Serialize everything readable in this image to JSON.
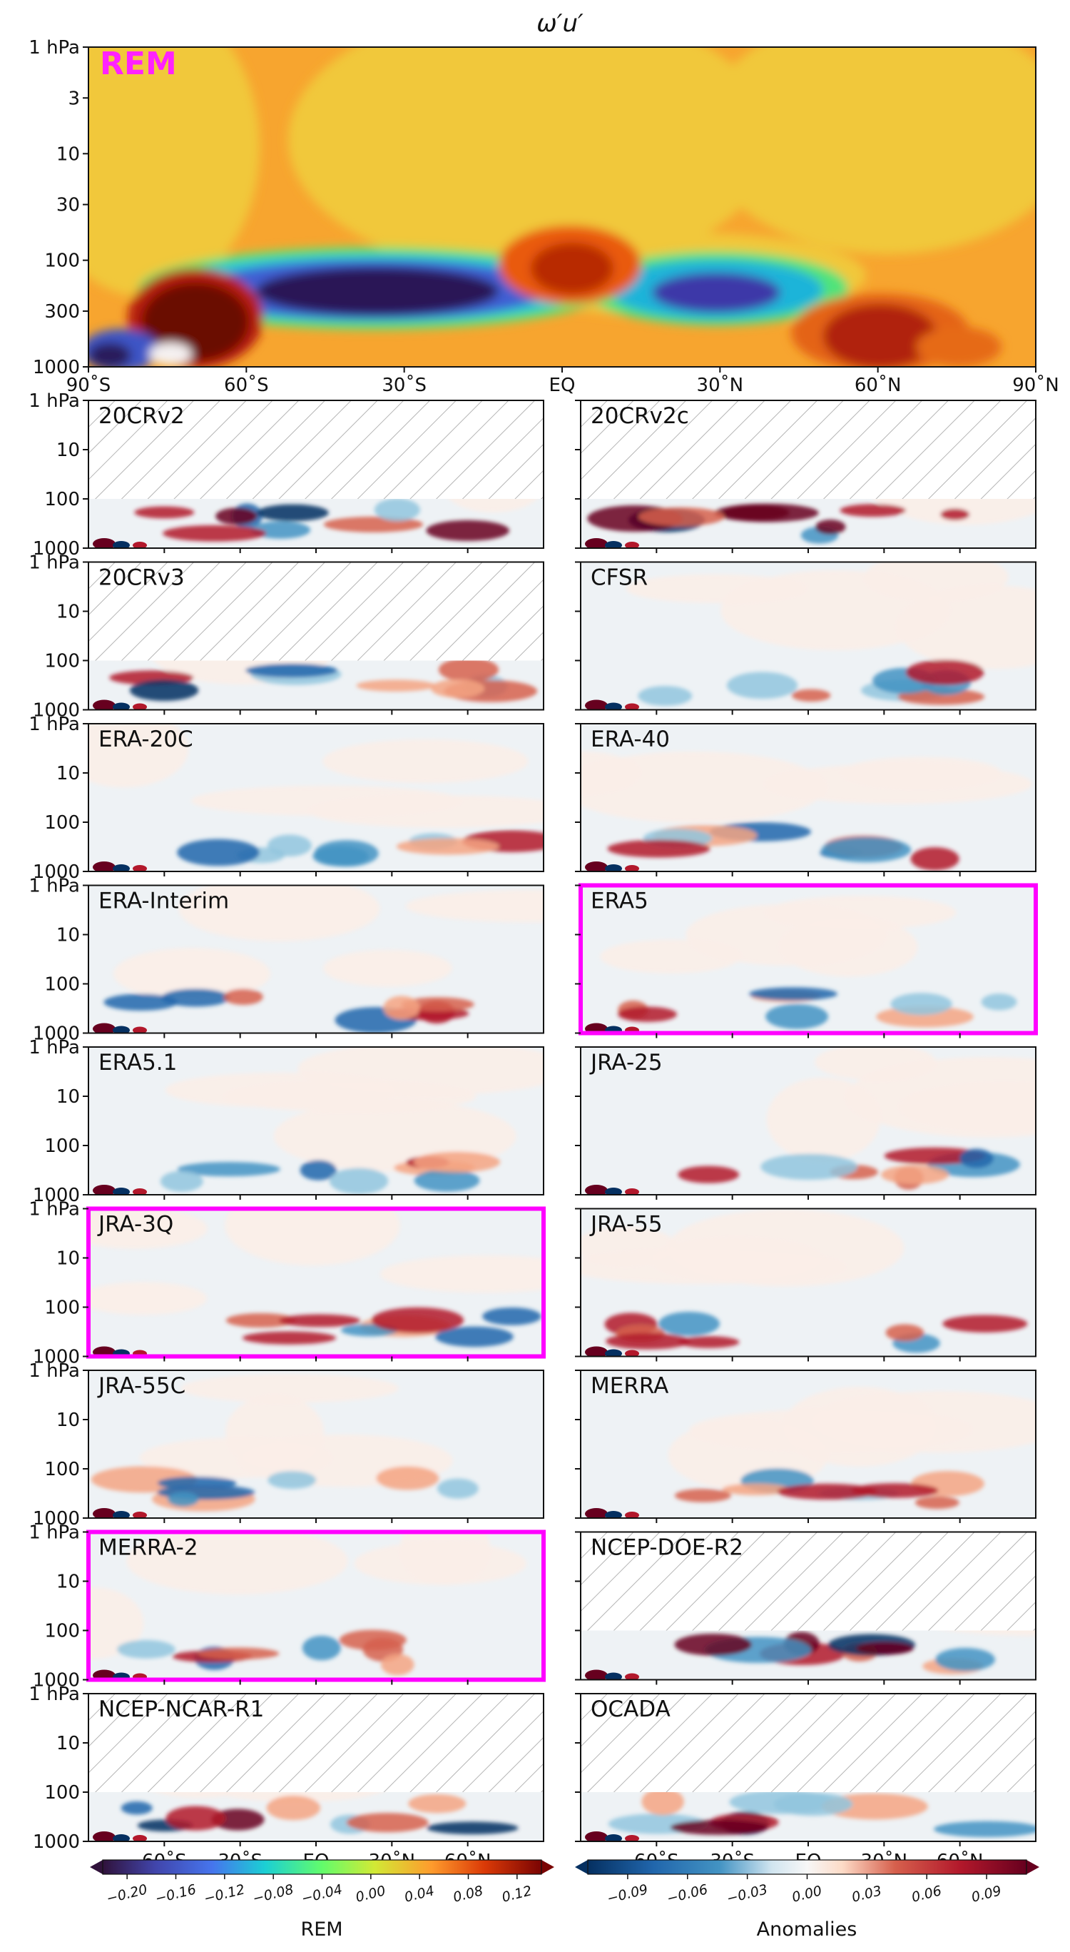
{
  "chart_data": {
    "type": "heatmap",
    "title": "ω′u′",
    "top_panel": {
      "label": "REM",
      "y_ticks": [
        "1 hPa",
        "3",
        "10",
        "30",
        "100",
        "300",
        "1000"
      ],
      "x_ticks": [
        "90˚S",
        "60˚S",
        "30˚S",
        "EQ",
        "30˚N",
        "60˚N",
        "90˚N"
      ]
    },
    "panel_y_ticks": [
      "1 hPa",
      "10",
      "100",
      "1000"
    ],
    "bottom_x_ticks": [
      "60˚S",
      "30˚S",
      "EQ",
      "30˚N",
      "60˚N"
    ],
    "panels": [
      {
        "name": "20CRv2",
        "masked_above_100hPa": true,
        "highlight": false
      },
      {
        "name": "20CRv2c",
        "masked_above_100hPa": true,
        "highlight": false
      },
      {
        "name": "20CRv3",
        "masked_above_100hPa": true,
        "highlight": false
      },
      {
        "name": "CFSR",
        "masked_above_100hPa": false,
        "highlight": false
      },
      {
        "name": "ERA-20C",
        "masked_above_100hPa": false,
        "highlight": false
      },
      {
        "name": "ERA-40",
        "masked_above_100hPa": false,
        "highlight": false
      },
      {
        "name": "ERA-Interim",
        "masked_above_100hPa": false,
        "highlight": false
      },
      {
        "name": "ERA5",
        "masked_above_100hPa": false,
        "highlight": true
      },
      {
        "name": "ERA5.1",
        "masked_above_100hPa": false,
        "highlight": false
      },
      {
        "name": "JRA-25",
        "masked_above_100hPa": false,
        "highlight": false
      },
      {
        "name": "JRA-3Q",
        "masked_above_100hPa": false,
        "highlight": true
      },
      {
        "name": "JRA-55",
        "masked_above_100hPa": false,
        "highlight": false
      },
      {
        "name": "JRA-55C",
        "masked_above_100hPa": false,
        "highlight": false
      },
      {
        "name": "MERRA",
        "masked_above_100hPa": false,
        "highlight": false
      },
      {
        "name": "MERRA-2",
        "masked_above_100hPa": false,
        "highlight": true
      },
      {
        "name": "NCEP-DOE-R2",
        "masked_above_100hPa": true,
        "highlight": false
      },
      {
        "name": "NCEP-NCAR-R1",
        "masked_above_100hPa": true,
        "highlight": false
      },
      {
        "name": "OCADA",
        "masked_above_100hPa": true,
        "highlight": false
      }
    ],
    "colorbars": [
      {
        "label": "REM",
        "cmap": "turbo",
        "range": [
          -0.22,
          0.14
        ],
        "ticks": [
          "−0.20",
          "−0.16",
          "−0.12",
          "−0.08",
          "−0.04",
          "0.00",
          "0.04",
          "0.08",
          "0.12"
        ]
      },
      {
        "label": "Anomalies",
        "cmap": "RdBu_r",
        "range": [
          -0.11,
          0.11
        ],
        "ticks": [
          "−0.09",
          "−0.06",
          "−0.03",
          "0.00",
          "0.03",
          "0.06",
          "0.09"
        ]
      }
    ],
    "colors": {
      "highlight": "#ff00ff",
      "rem_label": "#ff22ff"
    }
  }
}
